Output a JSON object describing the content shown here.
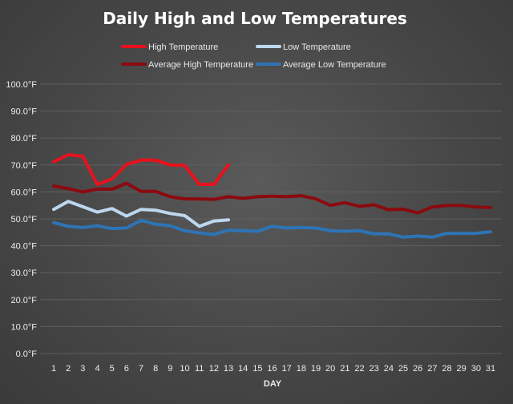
{
  "chart_data": {
    "type": "line",
    "title": "Daily High and Low Temperatures",
    "xlabel": "DAY",
    "ylabel": "",
    "ylim": [
      0,
      100
    ],
    "y_ticks": [
      "0.0°F",
      "10.0°F",
      "20.0°F",
      "30.0°F",
      "40.0°F",
      "50.0°F",
      "60.0°F",
      "70.0°F",
      "80.0°F",
      "90.0°F",
      "100.0°F"
    ],
    "categories": [
      "1",
      "2",
      "3",
      "4",
      "5",
      "6",
      "7",
      "8",
      "9",
      "10",
      "11",
      "12",
      "13",
      "14",
      "15",
      "16",
      "17",
      "18",
      "19",
      "20",
      "21",
      "22",
      "23",
      "24",
      "25",
      "26",
      "27",
      "28",
      "29",
      "30",
      "31"
    ],
    "grid": true,
    "legend_position": "top",
    "series": [
      {
        "name": "High Temperature",
        "color": "#e8111c",
        "values": [
          71.2,
          73.8,
          73.2,
          62.8,
          64.8,
          70.2,
          71.8,
          71.8,
          70.0,
          69.8,
          62.8,
          62.8,
          70.0,
          null,
          null,
          null,
          null,
          null,
          null,
          null,
          null,
          null,
          null,
          null,
          null,
          null,
          null,
          null,
          null,
          null,
          null
        ]
      },
      {
        "name": "Low Temperature",
        "color": "#bdd7ee",
        "values": [
          53.5,
          56.5,
          54.5,
          52.5,
          53.8,
          51.0,
          53.5,
          53.2,
          52.0,
          51.2,
          47.2,
          49.2,
          49.6,
          null,
          null,
          null,
          null,
          null,
          null,
          null,
          null,
          null,
          null,
          null,
          null,
          null,
          null,
          null,
          null,
          null,
          null
        ]
      },
      {
        "name": "Average High Temperature",
        "color": "#8b0a0f",
        "values": [
          62.2,
          61.2,
          60.0,
          61.0,
          61.0,
          63.2,
          60.2,
          60.2,
          58.2,
          57.4,
          57.4,
          57.2,
          58.2,
          57.6,
          58.2,
          58.4,
          58.2,
          58.6,
          57.4,
          55.0,
          56.0,
          54.6,
          55.2,
          53.4,
          53.6,
          52.2,
          54.4,
          55.0,
          55.0,
          54.4,
          54.2
        ]
      },
      {
        "name": "Average Low Temperature",
        "color": "#2e74b5",
        "values": [
          48.6,
          47.2,
          46.8,
          47.4,
          46.4,
          46.6,
          49.4,
          48.0,
          47.4,
          45.6,
          44.8,
          44.2,
          45.8,
          45.6,
          45.4,
          47.2,
          46.6,
          46.8,
          46.6,
          45.6,
          45.4,
          45.6,
          44.4,
          44.4,
          43.2,
          43.6,
          43.2,
          44.6,
          44.6,
          44.6,
          45.2
        ]
      }
    ]
  }
}
